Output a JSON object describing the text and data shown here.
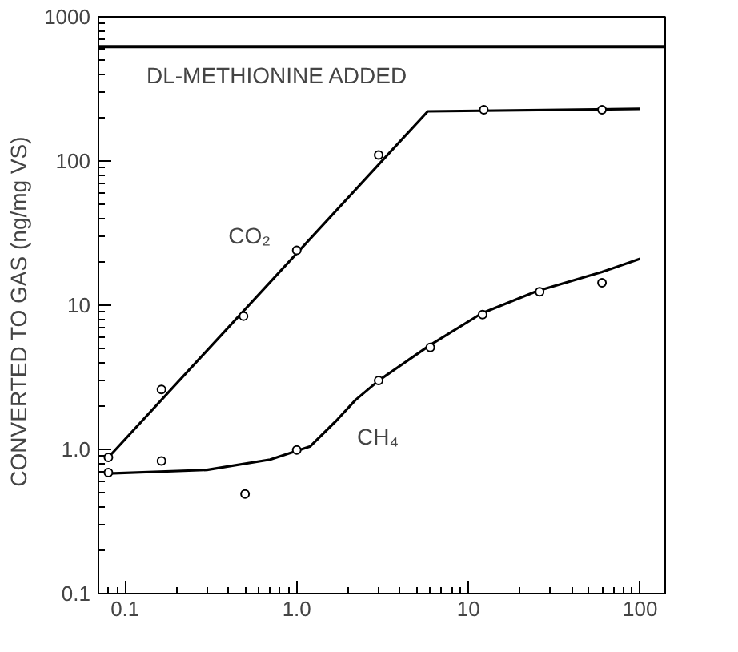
{
  "chart_data": {
    "type": "scatter",
    "ylabel": "CONVERTED TO GAS   (ng/mg VS)",
    "log": "xy",
    "xlim": [
      0.07,
      140
    ],
    "ylim": [
      0.1,
      1000
    ],
    "xticks": [
      0.1,
      {
        "value": 1,
        "label": "1.0"
      },
      10,
      100
    ],
    "yticks": [
      0.1,
      {
        "value": 1,
        "label": "1.0"
      },
      10,
      100,
      1000
    ],
    "grid": false,
    "marker": "circle",
    "series": [
      {
        "color": "#000000",
        "x": [
          0.08,
          0.163,
          0.49,
          1.0,
          3.0,
          12.3,
          60
        ],
        "values": [
          0.88,
          2.6,
          8.4,
          24,
          110,
          227,
          227
        ]
      },
      {
        "color": "#000000",
        "x": [
          0.08,
          0.163,
          0.5,
          1.0,
          3.0,
          6.0,
          12.1,
          26,
          60
        ],
        "values": [
          0.69,
          0.83,
          0.49,
          0.99,
          3.0,
          5.1,
          8.6,
          12.4,
          14.3
        ]
      },
      {
        "type": "line",
        "name": "CO₂",
        "marker": "none",
        "color": "#000000",
        "x": [
          0.08,
          5.8,
          100
        ],
        "values": [
          0.88,
          221,
          230
        ]
      },
      {
        "type": "line",
        "name": "CH₄",
        "marker": "none",
        "color": "#000000",
        "x": [
          0.08,
          0.3,
          0.7,
          1.2,
          1.7,
          2.2,
          3,
          6,
          12,
          25,
          60,
          100
        ],
        "values": [
          0.68,
          0.72,
          0.85,
          1.05,
          1.58,
          2.2,
          3.0,
          5.3,
          8.8,
          12.5,
          17,
          21
        ]
      }
    ],
    "ref_lines": [
      {
        "axis": "y",
        "value": 620,
        "label": "DL-METHIONINE ADDED"
      }
    ]
  }
}
